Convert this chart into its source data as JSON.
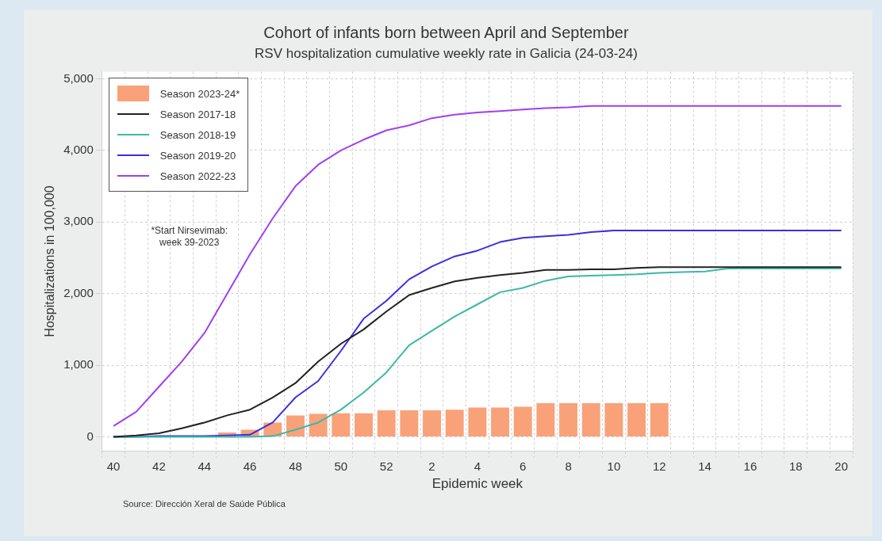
{
  "chart_data": {
    "type": "line",
    "title": "Cohort of infants born between April and September",
    "subtitle": "RSV hospitalization cumulative weekly rate in Galicia (24-03-24)",
    "xlabel": "Epidemic week",
    "ylabel": "Hospitalizations in 100,000",
    "categories": [
      "40",
      null,
      "42",
      null,
      "44",
      null,
      "46",
      null,
      "48",
      null,
      "50",
      null,
      "52",
      null,
      "2",
      null,
      "4",
      null,
      "6",
      null,
      "8",
      null,
      "10",
      null,
      "12",
      null,
      "14",
      null,
      "16",
      null,
      "18",
      null,
      "20"
    ],
    "series": [
      {
        "name": "Season 2023-24*",
        "type": "bar",
        "color": "#f9a27a",
        "values": [
          null,
          null,
          null,
          null,
          null,
          60,
          100,
          200,
          300,
          320,
          330,
          330,
          370,
          370,
          370,
          380,
          410,
          410,
          420,
          470,
          470,
          470,
          470,
          470,
          470,
          null,
          null,
          null,
          null,
          null,
          null,
          null,
          null
        ]
      },
      {
        "name": "Season 2017-18",
        "color": "#222222",
        "values": [
          0,
          20,
          50,
          120,
          200,
          300,
          380,
          550,
          750,
          1050,
          1300,
          1500,
          1750,
          1980,
          2080,
          2170,
          2220,
          2260,
          2290,
          2330,
          2330,
          2340,
          2340,
          2360,
          2370,
          2370,
          2370,
          2370,
          2370,
          2370,
          2370,
          2370,
          2370
        ]
      },
      {
        "name": "Season 2018-19",
        "color": "#3cb8a8",
        "values": [
          0,
          0,
          0,
          0,
          0,
          0,
          0,
          10,
          100,
          200,
          380,
          620,
          900,
          1280,
          1480,
          1680,
          1850,
          2020,
          2080,
          2180,
          2240,
          2250,
          2260,
          2270,
          2290,
          2300,
          2310,
          2350,
          2350,
          2350,
          2350,
          2350,
          2350
        ]
      },
      {
        "name": "Season 2019-20",
        "color": "#3a2fe0",
        "values": [
          0,
          0,
          10,
          10,
          10,
          20,
          30,
          200,
          550,
          780,
          1200,
          1650,
          1900,
          2200,
          2380,
          2520,
          2600,
          2720,
          2780,
          2800,
          2820,
          2860,
          2880,
          2880,
          2880,
          2880,
          2880,
          2880,
          2880,
          2880,
          2880,
          2880,
          2880
        ]
      },
      {
        "name": "Season 2022-23",
        "color": "#a040f0",
        "values": [
          150,
          350,
          700,
          1050,
          1450,
          2000,
          2550,
          3050,
          3500,
          3800,
          4000,
          4150,
          4280,
          4350,
          4450,
          4500,
          4530,
          4550,
          4570,
          4590,
          4600,
          4620,
          4620,
          4620,
          4620,
          4620,
          4620,
          4620,
          4620,
          4620,
          4620,
          4620,
          4620
        ]
      }
    ],
    "ylim": [
      -200,
      5100
    ],
    "yticks": [
      {
        "value": 0,
        "label": "0"
      },
      {
        "value": 1000,
        "label": "1,000"
      },
      {
        "value": 2000,
        "label": "2,000"
      },
      {
        "value": 3000,
        "label": "3,000"
      },
      {
        "value": 4000,
        "label": "4,000"
      },
      {
        "value": 5000,
        "label": "5,000"
      }
    ],
    "grid": true,
    "legend": "top left",
    "marker": "none",
    "line_style": "solid",
    "annotations": [
      "*Start Nirsevimab:\nweek 39-2023",
      "Source: Dirección Xeral de Saúde Pública"
    ]
  }
}
